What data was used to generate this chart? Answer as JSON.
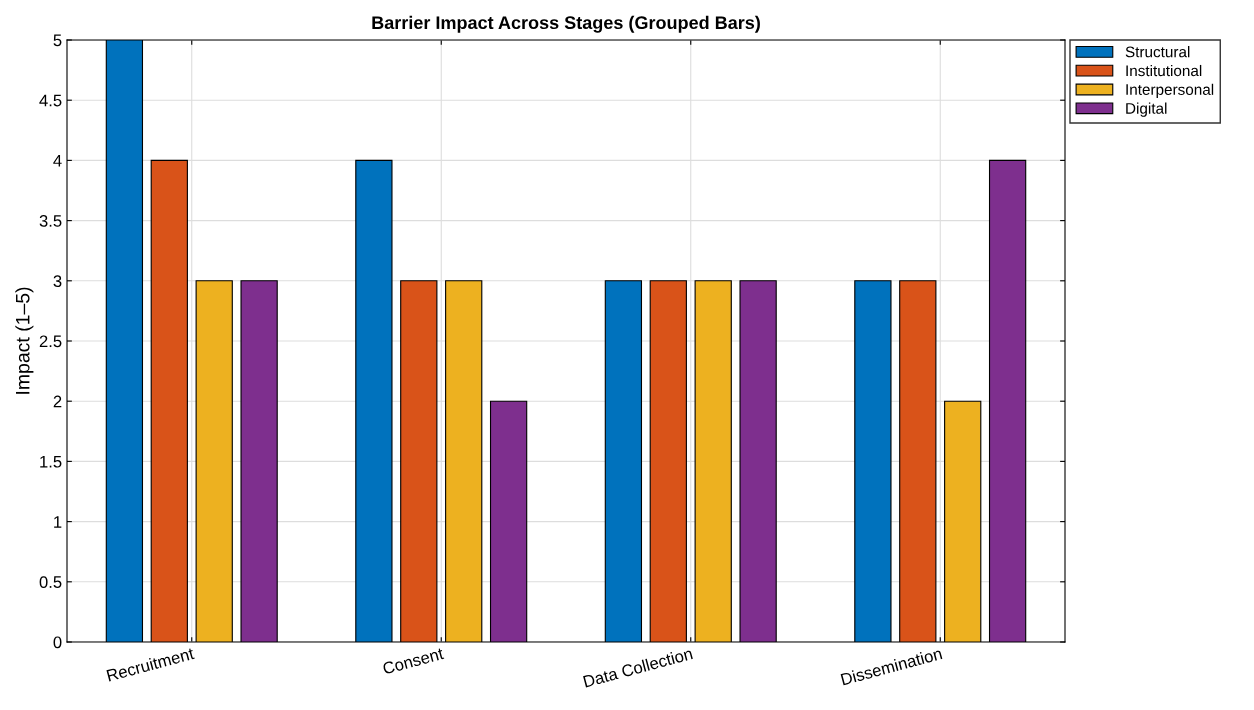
{
  "chart_data": {
    "type": "bar",
    "title": "Barrier Impact Across Stages (Grouped Bars)",
    "ylabel": "Impact (1–5)",
    "categories": [
      "Recruitment",
      "Consent",
      "Data Collection",
      "Dissemination"
    ],
    "series": [
      {
        "name": "Structural",
        "color": "#0072bd",
        "values": [
          5,
          4,
          3,
          3
        ]
      },
      {
        "name": "Institutional",
        "color": "#d95319",
        "values": [
          4,
          3,
          3,
          3
        ]
      },
      {
        "name": "Interpersonal",
        "color": "#edb120",
        "values": [
          3,
          3,
          3,
          2
        ]
      },
      {
        "name": "Digital",
        "color": "#7e2f8e",
        "values": [
          3,
          2,
          3,
          4
        ]
      }
    ],
    "ylim": [
      0,
      5
    ],
    "yticks": [
      0,
      0.5,
      1,
      1.5,
      2,
      2.5,
      3,
      3.5,
      4,
      4.5,
      5
    ],
    "grid": true,
    "legend": "top right"
  }
}
